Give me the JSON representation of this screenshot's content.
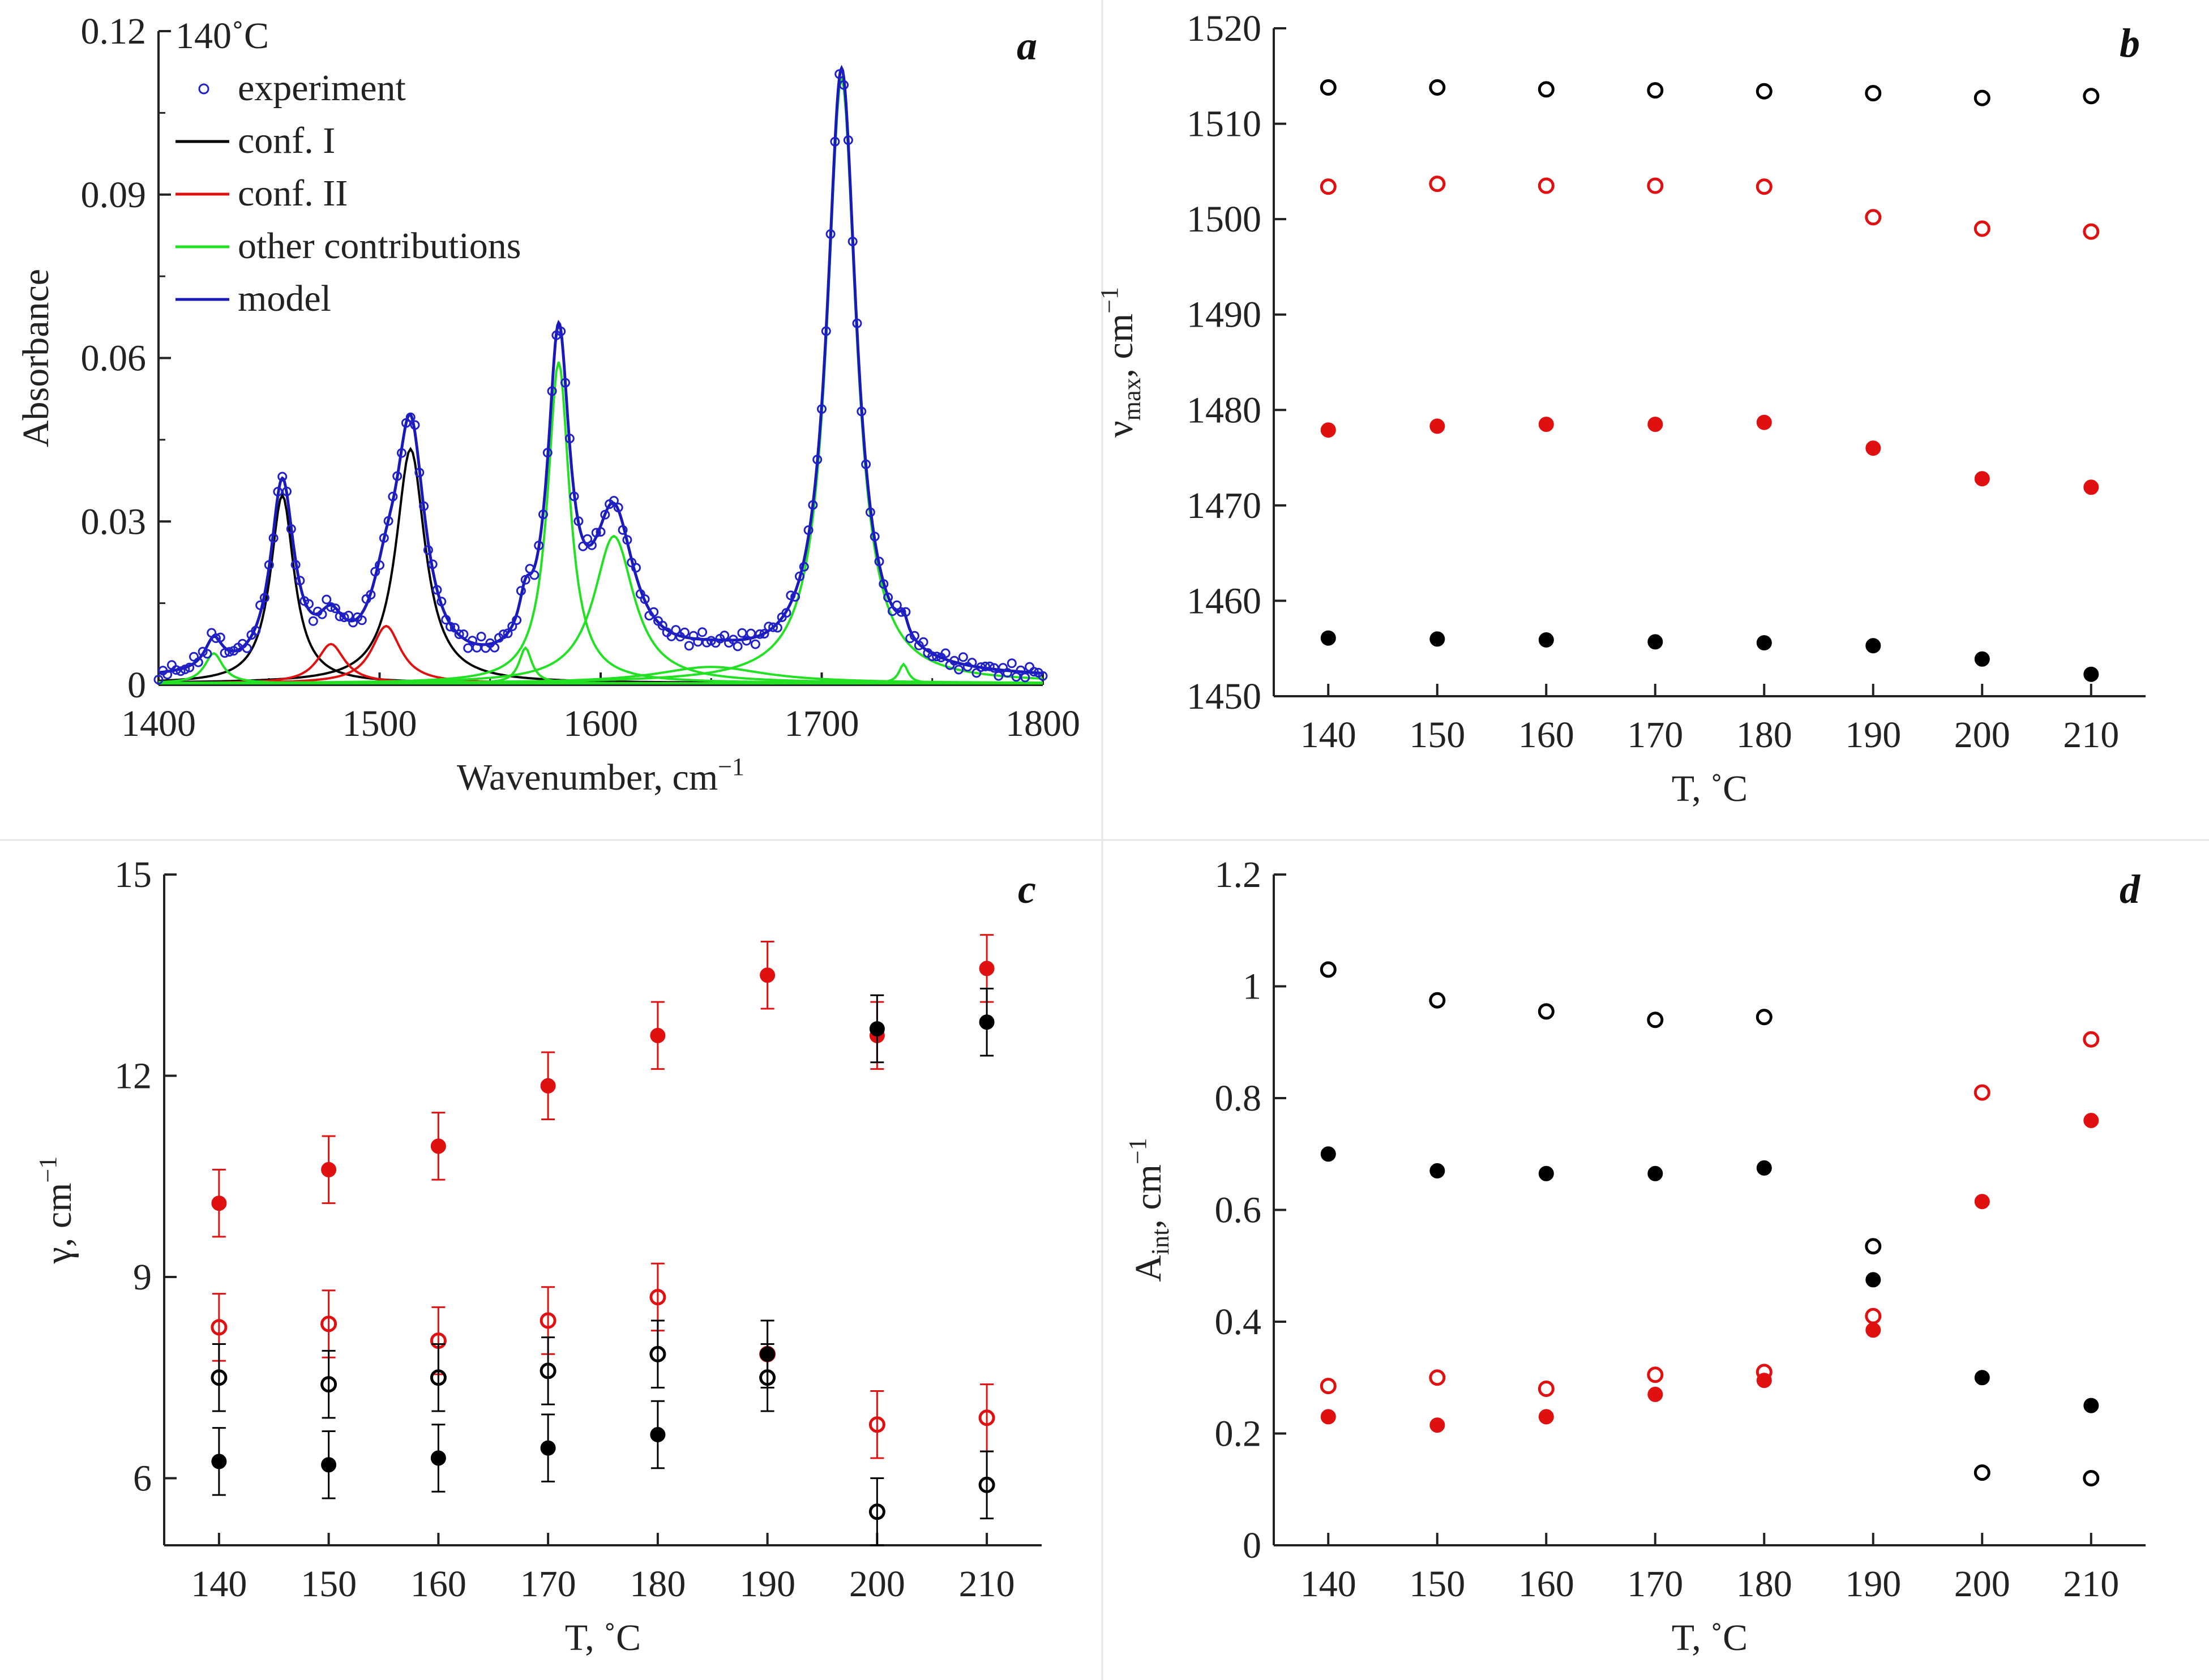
{
  "chart_data": [
    {
      "panel": "a",
      "type": "line",
      "annotation": "140˚C",
      "xlabel": "Wavenumber, cm",
      "xlabel_sup": "−1",
      "ylabel": "Absorbance",
      "xlim": [
        1400,
        1800
      ],
      "ylim": [
        0,
        0.12
      ],
      "xticks": [
        "1400",
        "1500",
        "1600",
        "1700",
        "1800"
      ],
      "yticks": [
        "0",
        "0.03",
        "0.06",
        "0.09",
        "0.12"
      ],
      "legend_position": "top-left",
      "legend": [
        {
          "label": "experiment",
          "color": "#2020c8",
          "kind": "circle"
        },
        {
          "label": "conf. I",
          "color": "#000000",
          "kind": "line"
        },
        {
          "label": "conf. II",
          "color": "#e01010",
          "kind": "line"
        },
        {
          "label": "other contributions",
          "color": "#22e022",
          "kind": "line"
        },
        {
          "label": "model",
          "color": "#1a1ab8",
          "kind": "line"
        }
      ],
      "components": [
        {
          "group": "conf. I",
          "center": 1456,
          "amplitude": 0.0345,
          "hwhm": 6.5
        },
        {
          "group": "conf. I",
          "center": 1514,
          "amplitude": 0.043,
          "hwhm": 8.0
        },
        {
          "group": "conf. II",
          "center": 1478,
          "amplitude": 0.0072,
          "hwhm": 7.5
        },
        {
          "group": "conf. II",
          "center": 1503,
          "amplitude": 0.0105,
          "hwhm": 8.0
        },
        {
          "group": "other contributions",
          "center": 1425,
          "amplitude": 0.0055,
          "hwhm": 5.0
        },
        {
          "group": "other contributions",
          "center": 1566,
          "amplitude": 0.0065,
          "hwhm": 3.5
        },
        {
          "group": "other contributions",
          "center": 1581,
          "amplitude": 0.059,
          "hwhm": 6.0
        },
        {
          "group": "other contributions",
          "center": 1606,
          "amplitude": 0.027,
          "hwhm": 11.0
        },
        {
          "group": "other contributions",
          "center": 1709,
          "amplitude": 0.111,
          "hwhm": 8.0
        },
        {
          "group": "other contributions",
          "center": 1737,
          "amplitude": 0.0035,
          "hwhm": 2.5
        },
        {
          "group": "other contributions",
          "center": 1650,
          "amplitude": 0.003,
          "hwhm": 30.0
        }
      ],
      "baseline": 0.001
    },
    {
      "panel": "b",
      "type": "scatter",
      "xlabel": "T, ˚C",
      "ylabel": "ν",
      "ylabel_sub": "max",
      "ylabel_tail": ", cm",
      "ylabel_sup": "−1",
      "x": [
        140,
        150,
        160,
        170,
        180,
        190,
        200,
        210
      ],
      "xlim": [
        135,
        215
      ],
      "ylim": [
        1450,
        1520
      ],
      "xticks": [
        "140",
        "150",
        "160",
        "170",
        "180",
        "190",
        "200",
        "210"
      ],
      "yticks": [
        "1450",
        "1460",
        "1470",
        "1480",
        "1490",
        "1500",
        "1510",
        "1520"
      ],
      "series": [
        {
          "color": "#000000",
          "filled": false,
          "values": [
            1513.8,
            1513.8,
            1513.6,
            1513.5,
            1513.4,
            1513.2,
            1512.7,
            1512.9
          ]
        },
        {
          "color": "#e01010",
          "filled": false,
          "values": [
            1503.4,
            1503.7,
            1503.5,
            1503.5,
            1503.4,
            1500.2,
            1499.0,
            1498.7
          ]
        },
        {
          "color": "#e01010",
          "filled": true,
          "values": [
            1477.9,
            1478.3,
            1478.5,
            1478.5,
            1478.7,
            1476.0,
            1472.8,
            1471.9
          ]
        },
        {
          "color": "#000000",
          "filled": true,
          "values": [
            1456.1,
            1456.0,
            1455.9,
            1455.7,
            1455.6,
            1455.3,
            1453.9,
            1452.3
          ]
        }
      ]
    },
    {
      "panel": "c",
      "type": "scatter",
      "xlabel": "T, ˚C",
      "ylabel": "γ, cm",
      "ylabel_sup": "−1",
      "x": [
        140,
        150,
        160,
        170,
        180,
        190,
        200,
        210
      ],
      "xlim": [
        135,
        215
      ],
      "ylim": [
        5,
        15
      ],
      "xticks": [
        "140",
        "150",
        "160",
        "170",
        "180",
        "190",
        "200",
        "210"
      ],
      "yticks": [
        "6",
        "9",
        "12",
        "15"
      ],
      "error_bar": 0.5,
      "series": [
        {
          "color": "#e01010",
          "filled": true,
          "values": [
            10.1,
            10.6,
            10.95,
            11.85,
            12.6,
            13.5,
            12.6,
            13.6
          ]
        },
        {
          "color": "#e01010",
          "filled": false,
          "values": [
            8.25,
            8.3,
            8.05,
            8.35,
            8.7,
            7.85,
            6.8,
            6.9
          ]
        },
        {
          "color": "#000000",
          "filled": false,
          "values": [
            7.5,
            7.4,
            7.5,
            7.6,
            7.85,
            7.5,
            5.5,
            5.9
          ]
        },
        {
          "color": "#000000",
          "filled": true,
          "values": [
            6.25,
            6.2,
            6.3,
            6.45,
            6.65,
            7.85,
            12.7,
            12.8
          ]
        }
      ]
    },
    {
      "panel": "d",
      "type": "scatter",
      "xlabel": "T, ˚C",
      "ylabel": "A",
      "ylabel_sub": "int",
      "ylabel_tail": ", cm",
      "ylabel_sup": "−1",
      "x": [
        140,
        150,
        160,
        170,
        180,
        190,
        200,
        210
      ],
      "xlim": [
        135,
        215
      ],
      "ylim": [
        0,
        1.2
      ],
      "xticks": [
        "140",
        "150",
        "160",
        "170",
        "180",
        "190",
        "200",
        "210"
      ],
      "yticks": [
        "0",
        "0.2",
        "0.4",
        "0.6",
        "0.8",
        "1",
        "1.2"
      ],
      "series": [
        {
          "color": "#000000",
          "filled": false,
          "values": [
            1.03,
            0.975,
            0.955,
            0.94,
            0.945,
            0.535,
            0.13,
            0.12
          ]
        },
        {
          "color": "#000000",
          "filled": true,
          "values": [
            0.7,
            0.67,
            0.665,
            0.665,
            0.675,
            0.475,
            0.3,
            0.25
          ]
        },
        {
          "color": "#e01010",
          "filled": false,
          "values": [
            0.285,
            0.3,
            0.28,
            0.305,
            0.31,
            0.41,
            0.81,
            0.905
          ]
        },
        {
          "color": "#e01010",
          "filled": true,
          "values": [
            0.23,
            0.215,
            0.23,
            0.27,
            0.295,
            0.385,
            0.615,
            0.76
          ]
        }
      ]
    }
  ]
}
